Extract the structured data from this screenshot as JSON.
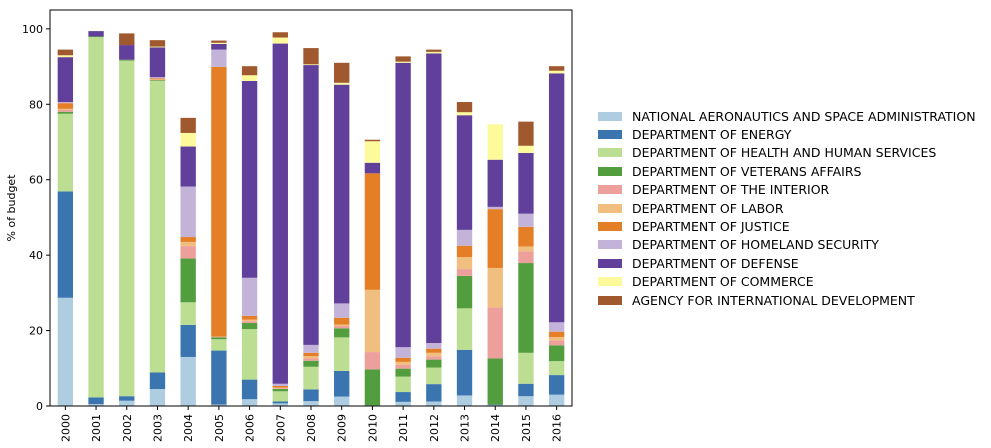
{
  "chart_data": {
    "type": "bar",
    "stacked": true,
    "ylabel": "% of budget",
    "ylim": [
      0,
      105
    ],
    "yticks": [
      0,
      20,
      40,
      60,
      80,
      100
    ],
    "grid": false,
    "legend_position": "right",
    "categories": [
      "2000",
      "2001",
      "2002",
      "2003",
      "2004",
      "2005",
      "2006",
      "2007",
      "2008",
      "2009",
      "2010",
      "2011",
      "2012",
      "2013",
      "2014",
      "2015",
      "2016"
    ],
    "series": [
      {
        "name": "NATIONAL AERONAUTICS AND SPACE ADMINISTRATION",
        "color": "#aecde1",
        "values": [
          28.7,
          0.5,
          1.4,
          4.5,
          13.0,
          0.4,
          1.8,
          0.7,
          1.3,
          2.5,
          0.1,
          1.1,
          1.2,
          2.8,
          0.3,
          2.6,
          3.0
        ]
      },
      {
        "name": "DEPARTMENT OF ENERGY",
        "color": "#3b75af",
        "values": [
          28.2,
          1.8,
          1.2,
          4.4,
          8.5,
          14.3,
          5.2,
          0.5,
          3.1,
          6.8,
          0.1,
          2.6,
          4.6,
          12.1,
          0.1,
          3.3,
          5.2
        ]
      },
      {
        "name": "DEPARTMENT OF HEALTH AND HUMAN SERVICES",
        "color": "#bbde93",
        "values": [
          20.6,
          95.5,
          89.0,
          77.3,
          6.0,
          3.0,
          13.4,
          2.7,
          6.0,
          8.9,
          0.0,
          4.1,
          4.4,
          11.0,
          0.0,
          8.2,
          3.7
        ]
      },
      {
        "name": "DEPARTMENT OF VETERANS AFFAIRS",
        "color": "#529e3e",
        "values": [
          0.5,
          0.2,
          0.2,
          0.2,
          11.6,
          0.5,
          1.6,
          0.6,
          1.6,
          2.4,
          9.5,
          2.1,
          2.1,
          8.6,
          12.2,
          23.8,
          4.2
        ]
      },
      {
        "name": "DEPARTMENT OF THE INTERIOR",
        "color": "#ed9f9b",
        "values": [
          0.5,
          0.0,
          0.0,
          0.1,
          3.3,
          0.1,
          0.5,
          0.2,
          0.6,
          0.6,
          4.6,
          1.0,
          0.9,
          1.8,
          13.5,
          3.1,
          1.3
        ]
      },
      {
        "name": "DEPARTMENT OF LABOR",
        "color": "#f0be7f",
        "values": [
          0.3,
          0.0,
          0.0,
          0.1,
          1.1,
          0.1,
          0.4,
          0.2,
          0.6,
          0.4,
          16.5,
          0.8,
          0.9,
          3.2,
          10.5,
          1.3,
          0.9
        ]
      },
      {
        "name": "DEPARTMENT OF JUSTICE",
        "color": "#e57f27",
        "values": [
          1.5,
          0.0,
          0.0,
          0.3,
          1.3,
          71.5,
          1.0,
          0.4,
          0.9,
          1.8,
          30.9,
          1.1,
          1.1,
          3.0,
          15.6,
          5.2,
          1.4
        ]
      },
      {
        "name": "DEPARTMENT OF HOMELAND SECURITY",
        "color": "#c4b3d8",
        "values": [
          0.3,
          0.0,
          0.0,
          0.3,
          13.4,
          4.6,
          10.1,
          0.6,
          2.1,
          3.8,
          0.0,
          2.8,
          1.5,
          4.2,
          0.6,
          3.5,
          2.5
        ]
      },
      {
        "name": "DEPARTMENT OF DEFENSE",
        "color": "#60409a",
        "values": [
          11.9,
          1.4,
          3.9,
          7.9,
          10.6,
          1.5,
          52.2,
          90.2,
          74.2,
          58.0,
          2.8,
          75.4,
          76.8,
          30.4,
          12.5,
          16.1,
          66.0
        ]
      },
      {
        "name": "DEPARTMENT OF COMMERCE",
        "color": "#fdfa9c",
        "values": [
          0.5,
          0.0,
          0.0,
          0.2,
          3.6,
          0.3,
          1.5,
          1.6,
          0.2,
          0.5,
          5.7,
          0.3,
          0.4,
          0.8,
          9.4,
          1.9,
          0.7
        ]
      },
      {
        "name": "AGENCY FOR INTERNATIONAL DEVELOPMENT",
        "color": "#a0582e",
        "values": [
          1.5,
          0.0,
          3.1,
          1.7,
          4.0,
          0.6,
          2.4,
          1.4,
          4.3,
          5.3,
          0.4,
          1.4,
          0.6,
          2.7,
          0.0,
          6.4,
          1.2
        ]
      }
    ]
  }
}
